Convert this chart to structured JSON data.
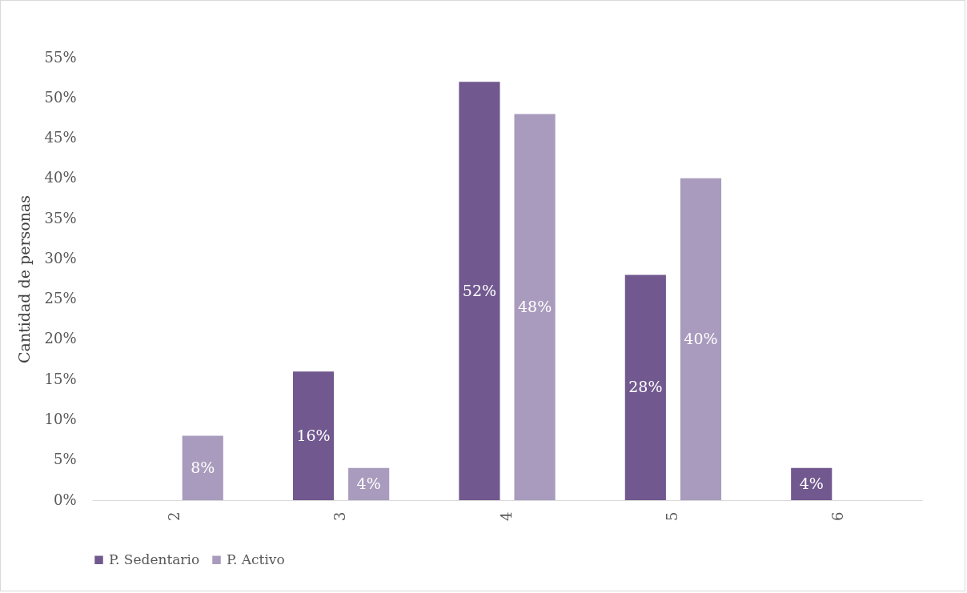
{
  "chart_data": {
    "type": "bar",
    "ylabel": "Cantidad de personas",
    "categories": [
      "2",
      "3",
      "4",
      "5",
      "6"
    ],
    "series": [
      {
        "name": "P. Sedentario",
        "color": "#71588f",
        "values": [
          null,
          16,
          52,
          28,
          4
        ],
        "value_labels": [
          null,
          "16%",
          "52%",
          "28%",
          "4%"
        ]
      },
      {
        "name": "P. Activo",
        "color": "#a99bbd",
        "values": [
          8,
          4,
          48,
          40,
          null
        ],
        "value_labels": [
          "8%",
          "4%",
          "48%",
          "40%",
          null
        ]
      }
    ],
    "ylim": [
      0,
      55
    ],
    "yticks": [
      {
        "value": 0,
        "label": "0%"
      },
      {
        "value": 5,
        "label": "5%"
      },
      {
        "value": 10,
        "label": "10%"
      },
      {
        "value": 15,
        "label": "15%"
      },
      {
        "value": 20,
        "label": "20%"
      },
      {
        "value": 25,
        "label": "25%"
      },
      {
        "value": 30,
        "label": "30%"
      },
      {
        "value": 35,
        "label": "35%"
      },
      {
        "value": 40,
        "label": "40%"
      },
      {
        "value": 45,
        "label": "45%"
      },
      {
        "value": 50,
        "label": "50%"
      },
      {
        "value": 55,
        "label": "55%"
      }
    ],
    "grid": false,
    "legend": "bottom"
  }
}
